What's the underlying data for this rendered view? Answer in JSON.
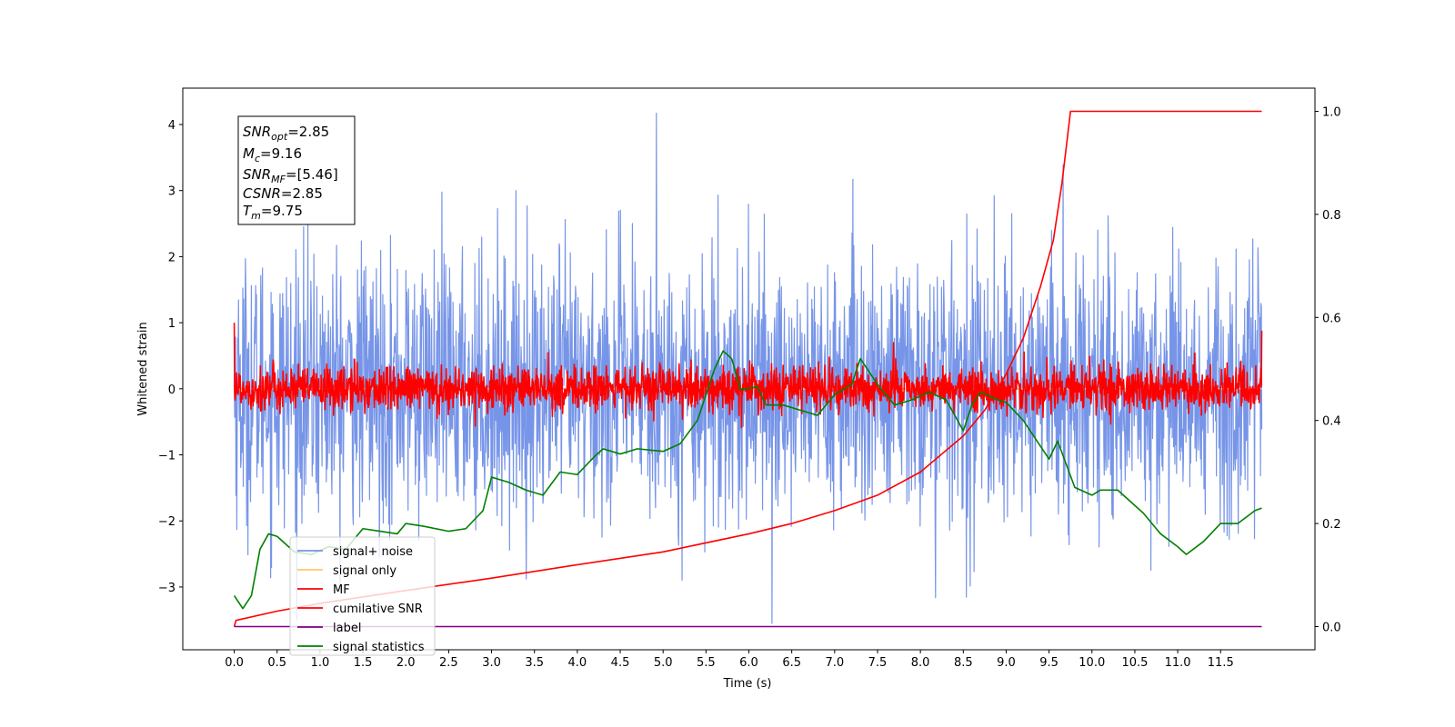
{
  "chart_data": {
    "type": "line",
    "title": "",
    "xlabel": "Time (s)",
    "ylabel": "Whitened strain",
    "xlim": [
      -0.6,
      12.6
    ],
    "ylim": [
      -3.95,
      4.55
    ],
    "y2lim": [
      -0.045,
      1.045
    ],
    "grid": false,
    "legend_position": "lower-left",
    "x_ticks": [
      "0.0",
      "0.5",
      "1.0",
      "1.5",
      "2.0",
      "2.5",
      "3.0",
      "3.5",
      "4.0",
      "4.5",
      "5.0",
      "5.5",
      "6.0",
      "6.5",
      "7.0",
      "7.5",
      "8.0",
      "8.5",
      "9.0",
      "9.5",
      "10.0",
      "10.5",
      "11.0",
      "11.5"
    ],
    "y_ticks": [
      "-3",
      "-2",
      "-1",
      "0",
      "1",
      "2",
      "3",
      "4"
    ],
    "y2_ticks": [
      "0.0",
      "0.2",
      "0.4",
      "0.6",
      "0.8",
      "1.0"
    ],
    "annotation": {
      "snr_opt": {
        "label": "SNR",
        "sub": "opt",
        "value": "=2.85"
      },
      "mc": {
        "label": "M",
        "sub": "c",
        "value": "=9.16"
      },
      "snr_mf": {
        "label": "SNR",
        "sub": "MF",
        "value": "=[5.46]"
      },
      "csnr": {
        "label": "CSNR",
        "sub": "",
        "value": "=2.85"
      },
      "tm": {
        "label": "T",
        "sub": "m",
        "value": "=9.75"
      }
    },
    "series": [
      {
        "name": "signal+ noise",
        "color": "#7795e8",
        "axis": "left",
        "style": "noise",
        "t_range": [
          0,
          11.98
        ],
        "amplitude": 1.0,
        "peak_max": 4.17,
        "peak_min": -3.55
      },
      {
        "name": "signal only",
        "color": "#ffc870",
        "axis": "left",
        "style": "flat",
        "t_range": [
          0,
          11.98
        ],
        "values": [
          0,
          0
        ]
      },
      {
        "name": "MF",
        "color": "#ff0000",
        "axis": "left",
        "style": "noise",
        "t_range": [
          0,
          11.98
        ],
        "amplitude": 0.17,
        "start_value": 1.0,
        "end_value": 0.88
      },
      {
        "name": "cumilative SNR",
        "color": "#ff0000",
        "axis": "right",
        "style": "line",
        "points": [
          [
            0.0,
            0.0
          ],
          [
            0.02,
            0.012
          ],
          [
            0.5,
            0.03
          ],
          [
            1.0,
            0.045
          ],
          [
            2.0,
            0.07
          ],
          [
            3.0,
            0.094
          ],
          [
            4.0,
            0.12
          ],
          [
            5.0,
            0.145
          ],
          [
            6.0,
            0.18
          ],
          [
            6.5,
            0.2
          ],
          [
            7.0,
            0.225
          ],
          [
            7.5,
            0.255
          ],
          [
            8.0,
            0.3
          ],
          [
            8.5,
            0.37
          ],
          [
            8.75,
            0.42
          ],
          [
            9.0,
            0.49
          ],
          [
            9.2,
            0.56
          ],
          [
            9.4,
            0.66
          ],
          [
            9.55,
            0.75
          ],
          [
            9.65,
            0.86
          ],
          [
            9.7,
            0.93
          ],
          [
            9.75,
            1.0
          ],
          [
            11.98,
            1.0
          ]
        ]
      },
      {
        "name": "label",
        "color": "#800080",
        "axis": "right",
        "style": "line",
        "points": [
          [
            0.0,
            0.0
          ],
          [
            11.98,
            0.0
          ]
        ]
      },
      {
        "name": "signal statistics",
        "color": "#008000",
        "axis": "right",
        "style": "line",
        "points": [
          [
            0.0,
            0.06
          ],
          [
            0.1,
            0.035
          ],
          [
            0.2,
            0.06
          ],
          [
            0.3,
            0.15
          ],
          [
            0.4,
            0.18
          ],
          [
            0.5,
            0.175
          ],
          [
            0.6,
            0.16
          ],
          [
            0.7,
            0.145
          ],
          [
            0.9,
            0.14
          ],
          [
            1.1,
            0.155
          ],
          [
            1.3,
            0.15
          ],
          [
            1.5,
            0.19
          ],
          [
            1.7,
            0.185
          ],
          [
            1.9,
            0.18
          ],
          [
            2.0,
            0.2
          ],
          [
            2.2,
            0.195
          ],
          [
            2.5,
            0.185
          ],
          [
            2.7,
            0.19
          ],
          [
            2.9,
            0.225
          ],
          [
            3.0,
            0.29
          ],
          [
            3.2,
            0.28
          ],
          [
            3.4,
            0.265
          ],
          [
            3.6,
            0.255
          ],
          [
            3.8,
            0.3
          ],
          [
            4.0,
            0.295
          ],
          [
            4.2,
            0.33
          ],
          [
            4.3,
            0.345
          ],
          [
            4.5,
            0.335
          ],
          [
            4.7,
            0.345
          ],
          [
            5.0,
            0.34
          ],
          [
            5.2,
            0.355
          ],
          [
            5.4,
            0.4
          ],
          [
            5.6,
            0.5
          ],
          [
            5.7,
            0.535
          ],
          [
            5.8,
            0.52
          ],
          [
            5.9,
            0.46
          ],
          [
            6.1,
            0.465
          ],
          [
            6.2,
            0.43
          ],
          [
            6.4,
            0.43
          ],
          [
            6.6,
            0.42
          ],
          [
            6.8,
            0.41
          ],
          [
            7.0,
            0.45
          ],
          [
            7.2,
            0.47
          ],
          [
            7.3,
            0.52
          ],
          [
            7.5,
            0.47
          ],
          [
            7.7,
            0.43
          ],
          [
            7.9,
            0.44
          ],
          [
            8.1,
            0.455
          ],
          [
            8.3,
            0.44
          ],
          [
            8.5,
            0.38
          ],
          [
            8.6,
            0.43
          ],
          [
            8.7,
            0.455
          ],
          [
            8.9,
            0.44
          ],
          [
            9.0,
            0.435
          ],
          [
            9.2,
            0.4
          ],
          [
            9.4,
            0.35
          ],
          [
            9.5,
            0.325
          ],
          [
            9.6,
            0.36
          ],
          [
            9.8,
            0.27
          ],
          [
            10.0,
            0.255
          ],
          [
            10.1,
            0.265
          ],
          [
            10.3,
            0.265
          ],
          [
            10.6,
            0.22
          ],
          [
            10.8,
            0.18
          ],
          [
            11.0,
            0.155
          ],
          [
            11.1,
            0.14
          ],
          [
            11.3,
            0.165
          ],
          [
            11.5,
            0.2
          ],
          [
            11.7,
            0.2
          ],
          [
            11.9,
            0.225
          ],
          [
            11.98,
            0.23
          ]
        ]
      }
    ]
  }
}
